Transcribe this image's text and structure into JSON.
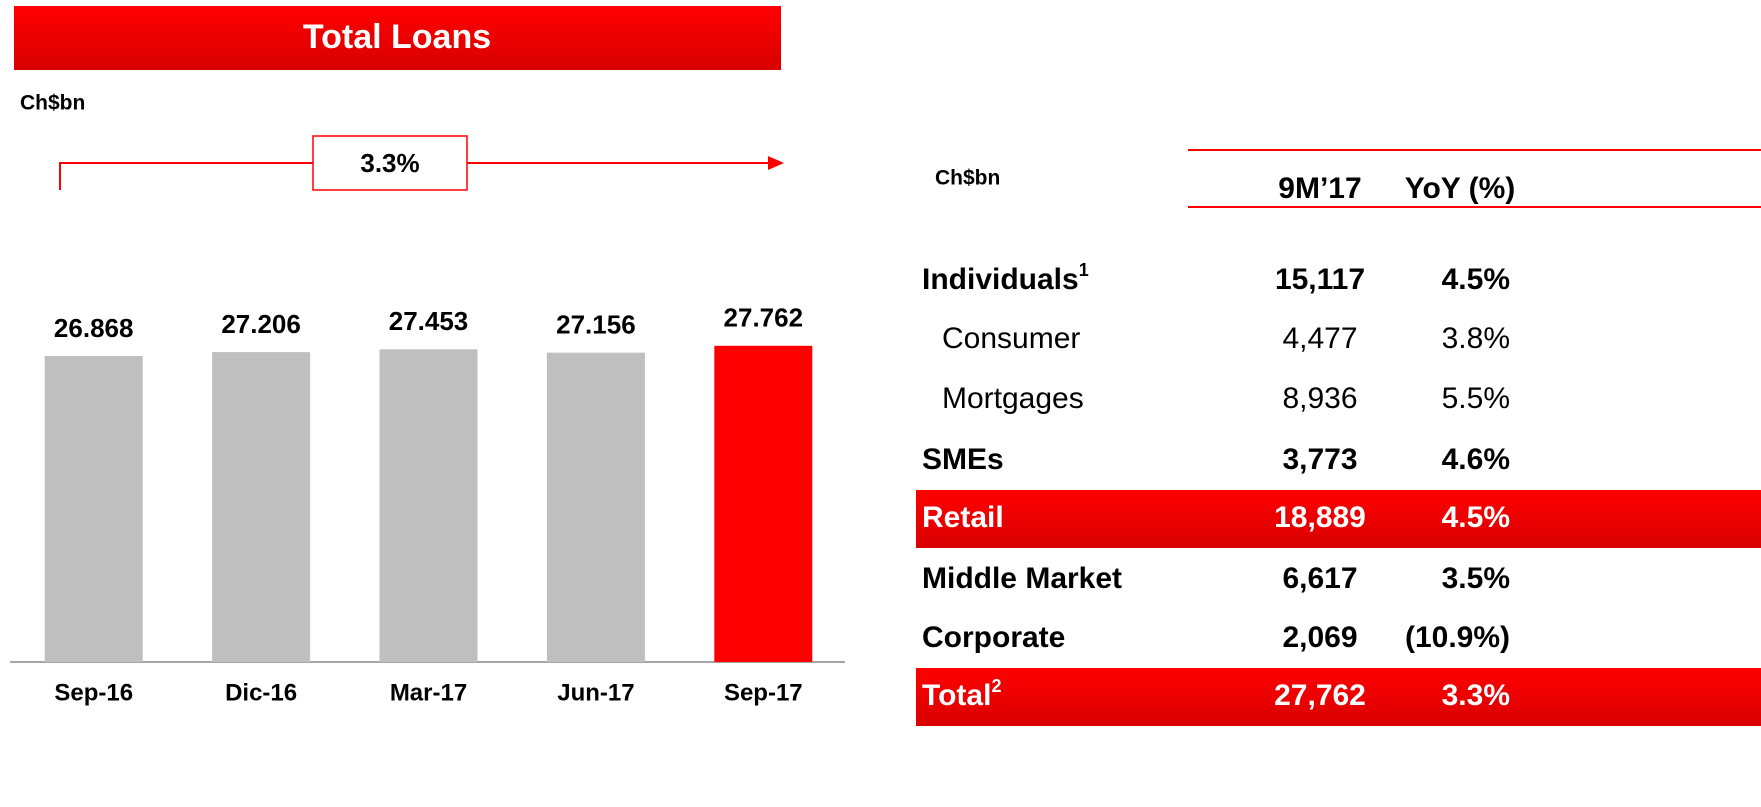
{
  "chart_data": {
    "type": "bar",
    "title": "Total Loans",
    "unit": "Ch$bn",
    "growth_label": "3.3%",
    "categories": [
      "Sep-16",
      "Dic-16",
      "Mar-17",
      "Jun-17",
      "Sep-17"
    ],
    "values": [
      26.868,
      27.206,
      27.453,
      27.156,
      27.762
    ],
    "colors": [
      "#bfbfbf",
      "#bfbfbf",
      "#bfbfbf",
      "#bfbfbf",
      "#ff0000"
    ]
  },
  "table": {
    "unit": "Ch$bn",
    "columns": [
      "9M’17",
      "YoY (%)"
    ],
    "rows": [
      {
        "label": "Individuals",
        "sup": "1",
        "value": "15,117",
        "yoy": "4.5%",
        "bold": true
      },
      {
        "label": "Consumer",
        "value": "4,477",
        "yoy": "3.8%",
        "indent": true
      },
      {
        "label": "Mortgages",
        "value": "8,936",
        "yoy": "5.5%",
        "indent": true
      },
      {
        "label": "SMEs",
        "value": "3,773",
        "yoy": "4.6%",
        "bold": true
      },
      {
        "label": "Retail",
        "value": "18,889",
        "yoy": "4.5%",
        "bold": true,
        "highlight": true
      },
      {
        "label": "Middle Market",
        "value": "6,617",
        "yoy": "3.5%",
        "bold": true
      },
      {
        "label": "Corporate",
        "value": "2,069",
        "yoy": "(10.9%)",
        "bold": true
      },
      {
        "label": "Total",
        "sup": "2",
        "value": "27,762",
        "yoy": "3.3%",
        "bold": true,
        "highlight": true
      }
    ]
  }
}
